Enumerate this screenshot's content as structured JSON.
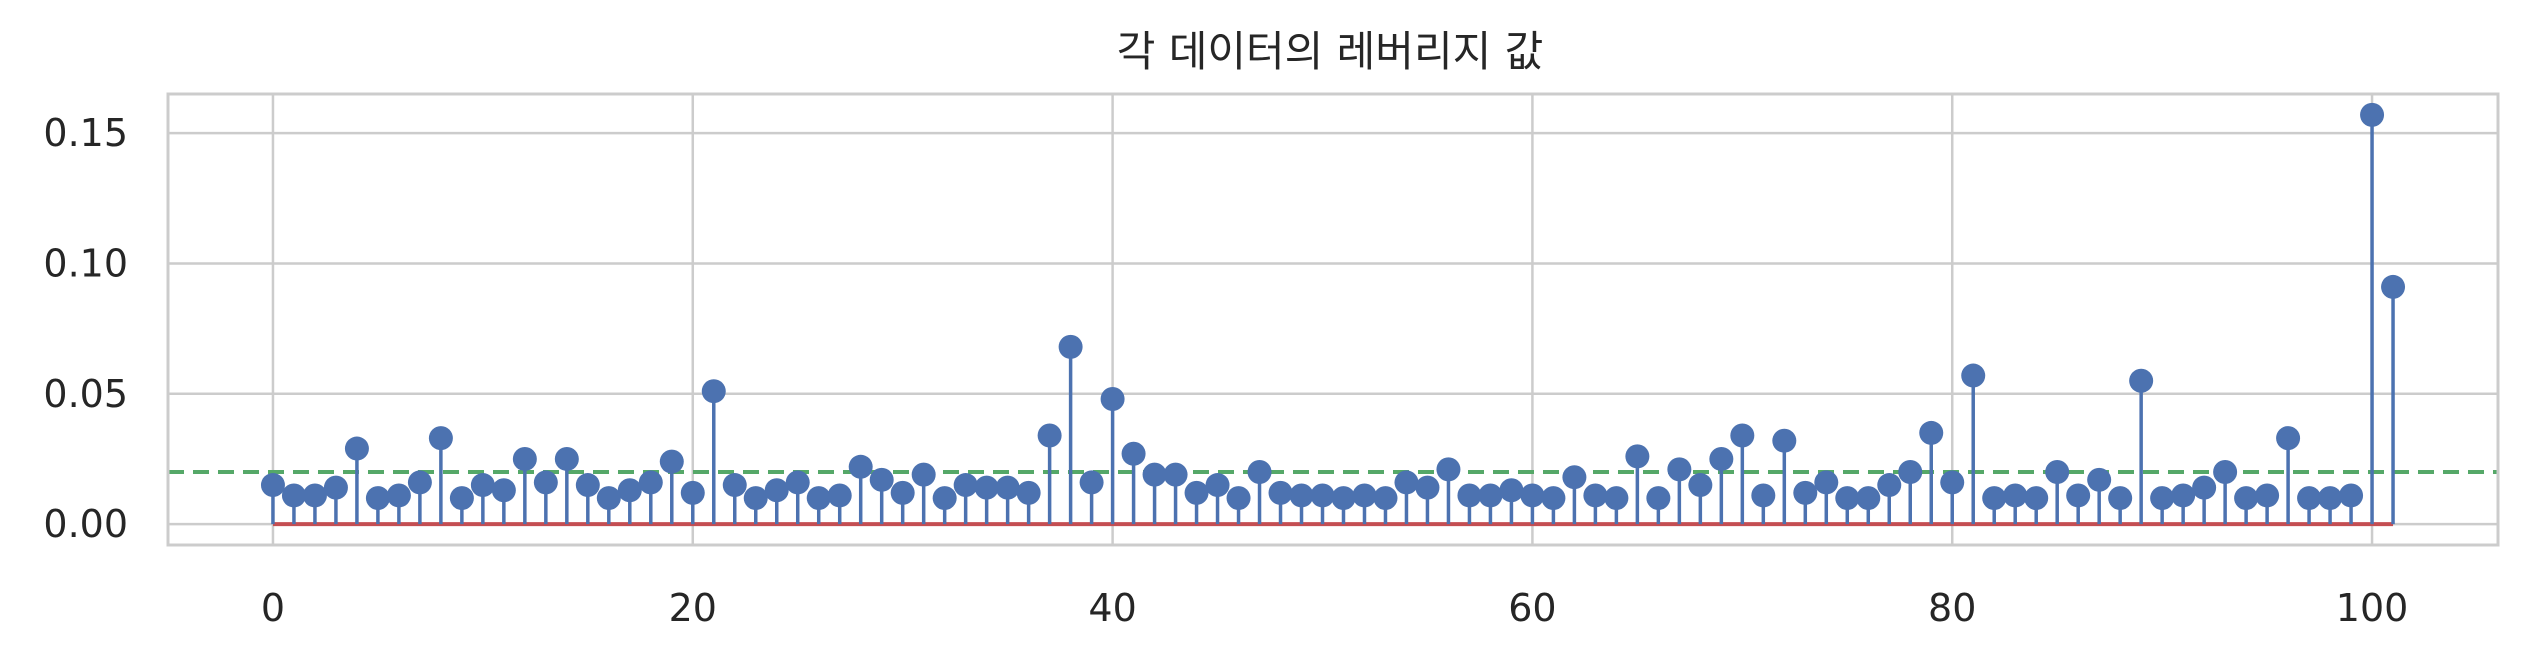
{
  "chart_data": {
    "type": "stem",
    "title": "각 데이터의 레버리지 값",
    "xlabel": "",
    "ylabel": "",
    "xlim": [
      -5,
      106
    ],
    "ylim": [
      -0.008,
      0.165
    ],
    "xticks": [
      0,
      20,
      40,
      60,
      80,
      100
    ],
    "xtick_labels": [
      "0",
      "20",
      "40",
      "60",
      "80",
      "100"
    ],
    "yticks": [
      0.0,
      0.05,
      0.1,
      0.15
    ],
    "ytick_labels": [
      "0.00",
      "0.05",
      "0.10",
      "0.15"
    ],
    "grid": true,
    "reference_line": {
      "y": 0.02,
      "style": "dashed",
      "color": "#55a868"
    },
    "baseline": {
      "y": 0.0,
      "color": "#c44e52"
    },
    "marker_color": "#4c72b0",
    "x": [
      0,
      1,
      2,
      3,
      4,
      5,
      6,
      7,
      8,
      9,
      10,
      11,
      12,
      13,
      14,
      15,
      16,
      17,
      18,
      19,
      20,
      21,
      22,
      23,
      24,
      25,
      26,
      27,
      28,
      29,
      30,
      31,
      32,
      33,
      34,
      35,
      36,
      37,
      38,
      39,
      40,
      41,
      42,
      43,
      44,
      45,
      46,
      47,
      48,
      49,
      50,
      51,
      52,
      53,
      54,
      55,
      56,
      57,
      58,
      59,
      60,
      61,
      62,
      63,
      64,
      65,
      66,
      67,
      68,
      69,
      70,
      71,
      72,
      73,
      74,
      75,
      76,
      77,
      78,
      79,
      80,
      81,
      82,
      83,
      84,
      85,
      86,
      87,
      88,
      89,
      90,
      91,
      92,
      93,
      94,
      95,
      96,
      97,
      98,
      99,
      100,
      101
    ],
    "values": [
      0.015,
      0.011,
      0.011,
      0.014,
      0.029,
      0.01,
      0.011,
      0.016,
      0.033,
      0.01,
      0.015,
      0.013,
      0.025,
      0.016,
      0.025,
      0.015,
      0.01,
      0.013,
      0.016,
      0.024,
      0.012,
      0.051,
      0.015,
      0.01,
      0.013,
      0.016,
      0.01,
      0.011,
      0.022,
      0.017,
      0.012,
      0.019,
      0.01,
      0.015,
      0.014,
      0.014,
      0.012,
      0.034,
      0.068,
      0.016,
      0.048,
      0.027,
      0.019,
      0.019,
      0.012,
      0.015,
      0.01,
      0.02,
      0.012,
      0.011,
      0.011,
      0.01,
      0.011,
      0.01,
      0.016,
      0.014,
      0.021,
      0.011,
      0.011,
      0.013,
      0.011,
      0.01,
      0.018,
      0.011,
      0.01,
      0.026,
      0.01,
      0.021,
      0.015,
      0.025,
      0.034,
      0.011,
      0.032,
      0.012,
      0.016,
      0.01,
      0.01,
      0.015,
      0.02,
      0.035,
      0.016,
      0.057,
      0.01,
      0.011,
      0.01,
      0.02,
      0.011,
      0.017,
      0.01,
      0.055,
      0.01,
      0.011,
      0.014,
      0.02,
      0.01,
      0.011,
      0.033,
      0.01,
      0.01,
      0.011,
      0.157,
      0.091
    ]
  }
}
